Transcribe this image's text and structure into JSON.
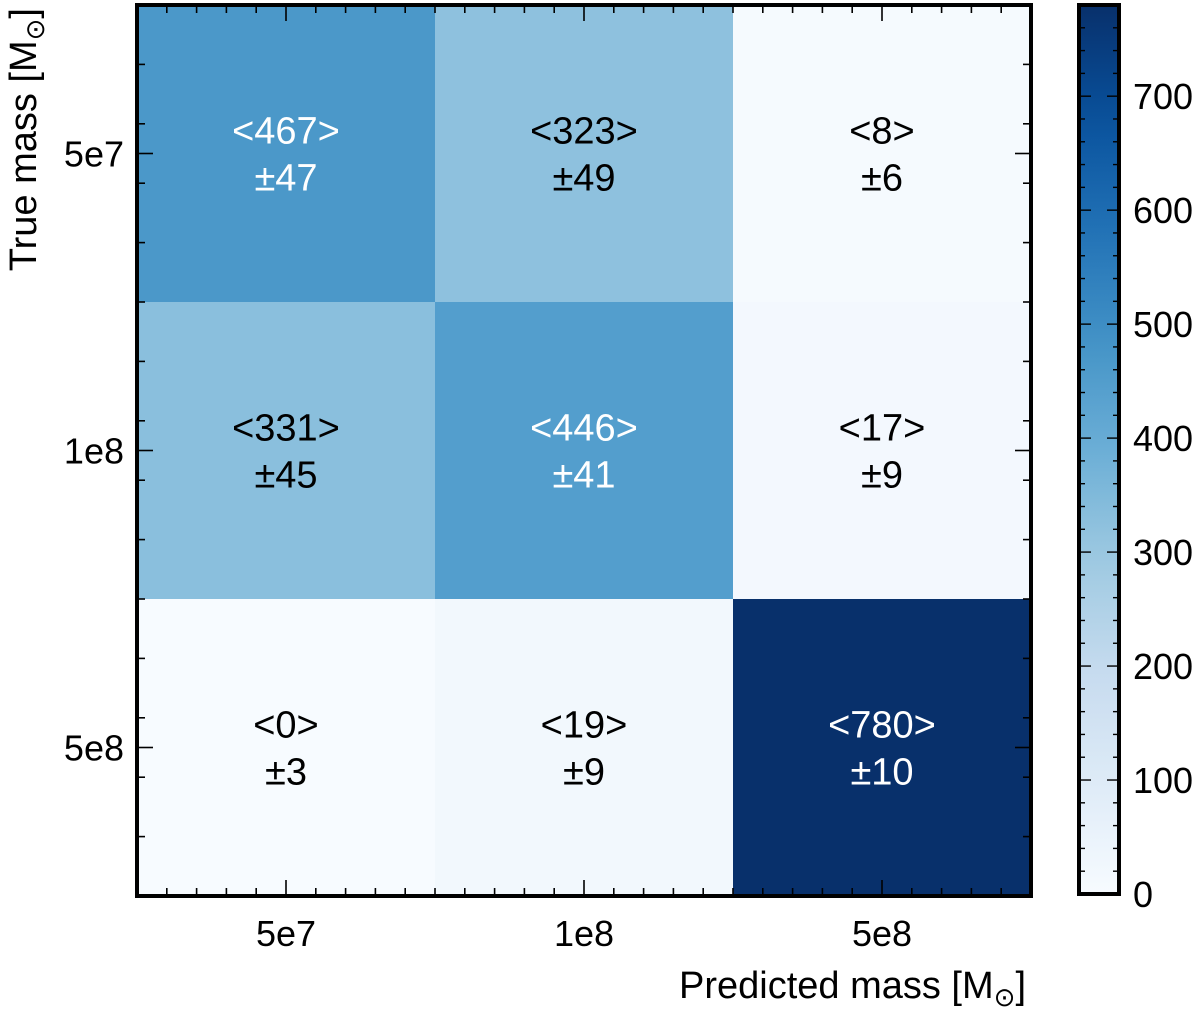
{
  "chart_data": {
    "type": "heatmap",
    "title": "",
    "xlabel": "Predicted mass [M",
    "ylabel": "True mass [M",
    "xlabel_unit_symbol": "⊙",
    "ylabel_unit_symbol": "⊙",
    "label_close": "]",
    "x_categories": [
      "5e7",
      "1e8",
      "5e8"
    ],
    "y_categories": [
      "5e7",
      "1e8",
      "5e8"
    ],
    "values": [
      [
        467,
        323,
        8
      ],
      [
        331,
        446,
        17
      ],
      [
        0,
        19,
        780
      ]
    ],
    "cell_labels": [
      [
        "<467>",
        "<323>",
        "<8>"
      ],
      [
        "<331>",
        "<446>",
        "<17>"
      ],
      [
        "<0>",
        "<19>",
        "<780>"
      ]
    ],
    "errors": [
      [
        "±47",
        "±49",
        "±6"
      ],
      [
        "±45",
        "±41",
        "±9"
      ],
      [
        "±3",
        "±9",
        "±10"
      ]
    ],
    "colorbar": {
      "range": [
        0,
        780
      ],
      "ticks": [
        0,
        100,
        200,
        300,
        400,
        500,
        600,
        700
      ],
      "tick_labels": [
        "0",
        "100",
        "200",
        "300",
        "400",
        "500",
        "600",
        "700"
      ],
      "colormap": "Blues"
    },
    "grid": false,
    "legend": "none"
  }
}
